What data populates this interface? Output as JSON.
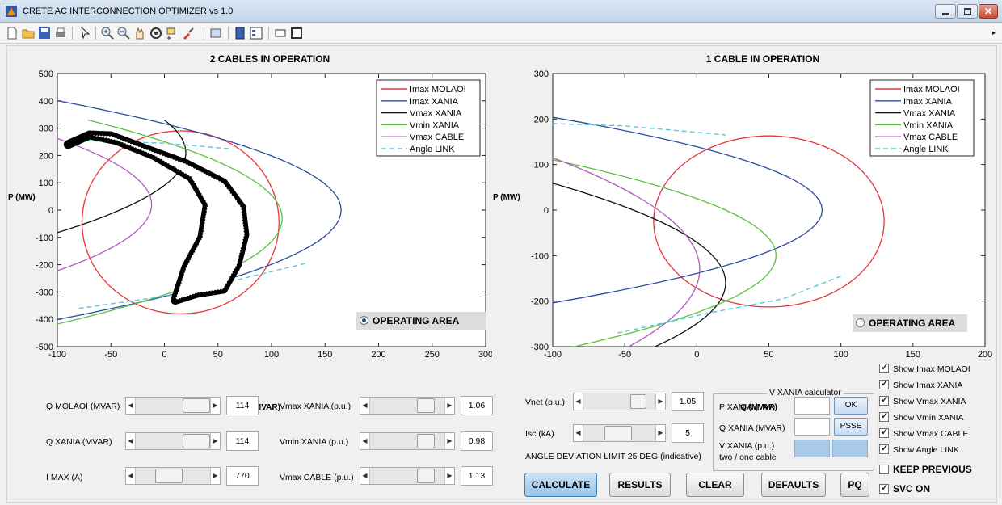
{
  "window": {
    "title": "CRETE AC INTERCONNECTION OPTIMIZER vs 1.0"
  },
  "toolbar": {
    "icons": [
      "new-file-icon",
      "open-folder-icon",
      "save-icon",
      "print-icon",
      "pointer-icon",
      "zoom-in-icon",
      "zoom-out-icon",
      "pan-icon",
      "rotate-icon",
      "data-cursor-icon",
      "brush-icon",
      "link-icon",
      "colorbar-icon",
      "legend-icon",
      "hide-tools-icon",
      "dock-icon"
    ]
  },
  "colors": {
    "imax_molaoi": "#e8343a",
    "imax_xania": "#2b4ca0",
    "vmax_xania": "#111111",
    "vmin_xania": "#5cbf3f",
    "vmax_cable": "#b05cc0",
    "angle_link": "#5ec8d8"
  },
  "left_plot": {
    "title": "2 CABLES IN OPERATION",
    "xlabel": "Q (MVAR)",
    "ylabel": "P (MW)",
    "xticks": [
      "-100",
      "-50",
      "0",
      "50",
      "100",
      "150",
      "200",
      "250",
      "300"
    ],
    "yticks": [
      "500",
      "400",
      "300",
      "200",
      "100",
      "0",
      "-100",
      "-200",
      "-300",
      "-400",
      "-500"
    ],
    "legend": [
      "Imax MOLAOI",
      "Imax XANIA",
      "Vmax XANIA",
      "Vmin XANIA",
      "Vmax CABLE",
      "Angle LINK"
    ],
    "operating_area_label": "OPERATING AREA",
    "operating_area_selected": true
  },
  "right_plot": {
    "title": "1 CABLE IN OPERATION",
    "xlabel": "Q (MVAR)",
    "ylabel": "P (MW)",
    "xticks": [
      "-100",
      "-50",
      "0",
      "50",
      "100",
      "150",
      "200"
    ],
    "yticks": [
      "300",
      "200",
      "100",
      "0",
      "-100",
      "-200",
      "-300"
    ],
    "legend": [
      "Imax MOLAOI",
      "Imax XANIA",
      "Vmax XANIA",
      "Vmin XANIA",
      "Vmax CABLE",
      "Angle LINK"
    ],
    "operating_area_label": "OPERATING AREA",
    "operating_area_selected": false
  },
  "controls": {
    "q_molaoi": {
      "label": "Q MOLAOI (MVAR)",
      "value": "114"
    },
    "q_xania": {
      "label": "Q XANIA (MVAR)",
      "value": "114"
    },
    "imax": {
      "label": "I MAX (A)",
      "value": "770"
    },
    "vmax_xania": {
      "label": "Vmax XANIA (p.u.)",
      "value": "1.06"
    },
    "vmin_xania": {
      "label": "Vmin XANIA (p.u.)",
      "value": "0.98"
    },
    "vmax_cable": {
      "label": "Vmax CABLE (p.u.)",
      "value": "1.13"
    },
    "vnet": {
      "label": "Vnet (p.u.)",
      "value": "1.05"
    },
    "isc": {
      "label": "Isc (kA)",
      "value": "5"
    },
    "angle_note": "ANGLE DEVIATION LIMIT 25 DEG (indicative)"
  },
  "vxania_calc": {
    "title": "V XANIA calculator",
    "p_label": "P XANIA (MW)",
    "q_label": "Q XANIA (MVAR)",
    "v_label": "V XANIA (p.u.)",
    "v_sub": "two / one cable",
    "ok": "OK",
    "psse": "PSSE"
  },
  "buttons": {
    "calculate": "CALCULATE",
    "results": "RESULTS",
    "clear": "CLEAR",
    "defaults": "DEFAULTS",
    "pq": "PQ"
  },
  "checkboxes": [
    {
      "label": "Show Imax MOLAOI",
      "checked": true
    },
    {
      "label": "Show Imax XANIA",
      "checked": true
    },
    {
      "label": "Show Vmax XANIA",
      "checked": true
    },
    {
      "label": "Show Vmin XANIA",
      "checked": true
    },
    {
      "label": "Show Vmax CABLE",
      "checked": true
    },
    {
      "label": "Show Angle LINK",
      "checked": true
    }
  ],
  "keep_previous": {
    "label": "KEEP PREVIOUS",
    "checked": false
  },
  "svc_on": {
    "label": "SVC ON",
    "checked": true
  }
}
